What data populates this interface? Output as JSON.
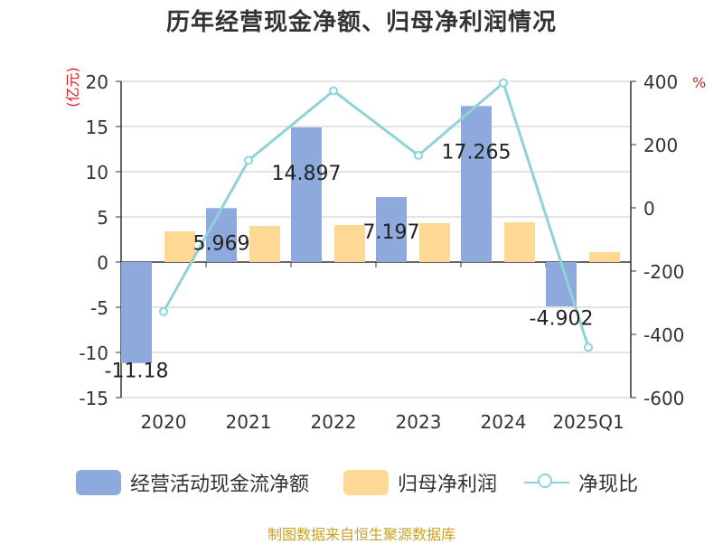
{
  "page": {
    "title": "历年经营现金净额、归母净利润情况",
    "left_unit": "(亿元)",
    "right_unit": "%",
    "source": "制图数据来自恒生聚源数据库"
  },
  "chart_data": {
    "type": "bar",
    "categories": [
      "2020",
      "2021",
      "2022",
      "2023",
      "2024",
      "2025Q1"
    ],
    "series": [
      {
        "name": "经营活动现金流净额",
        "type": "bar",
        "axis": "left",
        "color": "#8eaadc",
        "values": [
          -11.18,
          5.969,
          14.897,
          7.197,
          17.265,
          -4.902
        ],
        "data_labels": [
          "-11.18",
          "5.969",
          "14.897",
          "7.197",
          "17.265",
          "-4.902"
        ]
      },
      {
        "name": "归母净利润",
        "type": "bar",
        "axis": "left",
        "color": "#fdd995",
        "values": [
          3.4,
          4.0,
          4.1,
          4.3,
          4.4,
          1.1
        ]
      },
      {
        "name": "净现比",
        "type": "line",
        "axis": "right",
        "color": "#8fd3d8",
        "values": [
          -328,
          150,
          370,
          166,
          395,
          -441
        ]
      }
    ],
    "y_left": {
      "min": -15,
      "max": 20,
      "ticks": [
        -15,
        -10,
        -5,
        0,
        5,
        10,
        15,
        20
      ]
    },
    "y_right": {
      "min": -600,
      "max": 400,
      "ticks": [
        -600,
        -400,
        -200,
        0,
        200,
        400
      ]
    },
    "grid": true,
    "legend_position": "bottom"
  }
}
